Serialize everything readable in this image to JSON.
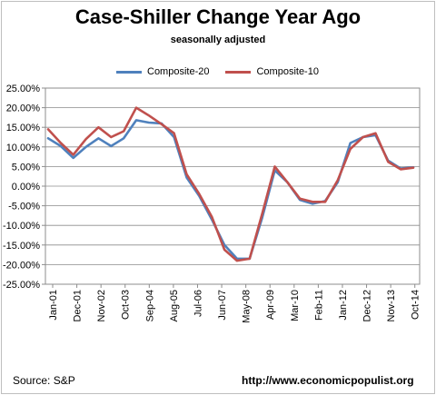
{
  "source_text": "Source: S&P",
  "url_text": "http://www.economicpopulist.org",
  "chart_data": {
    "type": "line",
    "title": "Case-Shiller Change Year Ago",
    "subtitle": "seasonally  adjusted",
    "xlabel": "",
    "ylabel": "",
    "ylim": [
      -0.25,
      0.25
    ],
    "grid": true,
    "legend_position": "top",
    "y_ticks": [
      "25.00%",
      "20.00%",
      "15.00%",
      "10.00%",
      "5.00%",
      "0.00%",
      "-5.00%",
      "-10.00%",
      "-15.00%",
      "-20.00%",
      "-25.00%"
    ],
    "x_tick_labels": [
      "Jan-01",
      "Dec-01",
      "Nov-02",
      "Oct-03",
      "Sep-04",
      "Aug-05",
      "Jul-06",
      "Jun-07",
      "May-08",
      "Apr-09",
      "Mar-10",
      "Feb-11",
      "Jan-12",
      "Dec-12",
      "Nov-13",
      "Oct-14"
    ],
    "x": [
      "Jan-01",
      "Jul-01",
      "Jan-02",
      "Jul-02",
      "Jan-03",
      "Jul-03",
      "Jan-04",
      "Jul-04",
      "Jan-05",
      "Jul-05",
      "Jan-06",
      "Jul-06",
      "Jan-07",
      "Jul-07",
      "Jan-08",
      "Jul-08",
      "Jan-09",
      "Jul-09",
      "Jan-10",
      "Jul-10",
      "Jan-11",
      "Jul-11",
      "Jan-12",
      "Jul-12",
      "Jan-13",
      "Jul-13",
      "Jan-14",
      "Jul-14",
      "Jan-15",
      "Jul-15"
    ],
    "series": [
      {
        "name": "Composite-20",
        "color": "#4f81bd",
        "values": [
          0.122,
          0.102,
          0.072,
          0.1,
          0.122,
          0.102,
          0.122,
          0.168,
          0.162,
          0.16,
          0.125,
          0.022,
          -0.025,
          -0.085,
          -0.15,
          -0.185,
          -0.185,
          -0.08,
          0.04,
          0.01,
          -0.035,
          -0.045,
          -0.038,
          0.01,
          0.11,
          0.125,
          0.13,
          0.065,
          0.045,
          0.048
        ]
      },
      {
        "name": "Composite-10",
        "color": "#c0504d",
        "values": [
          0.145,
          0.11,
          0.08,
          0.12,
          0.15,
          0.125,
          0.14,
          0.2,
          0.18,
          0.158,
          0.135,
          0.03,
          -0.02,
          -0.078,
          -0.162,
          -0.19,
          -0.185,
          -0.07,
          0.05,
          0.01,
          -0.032,
          -0.04,
          -0.04,
          0.015,
          0.095,
          0.125,
          0.135,
          0.062,
          0.043,
          0.047
        ]
      }
    ]
  }
}
